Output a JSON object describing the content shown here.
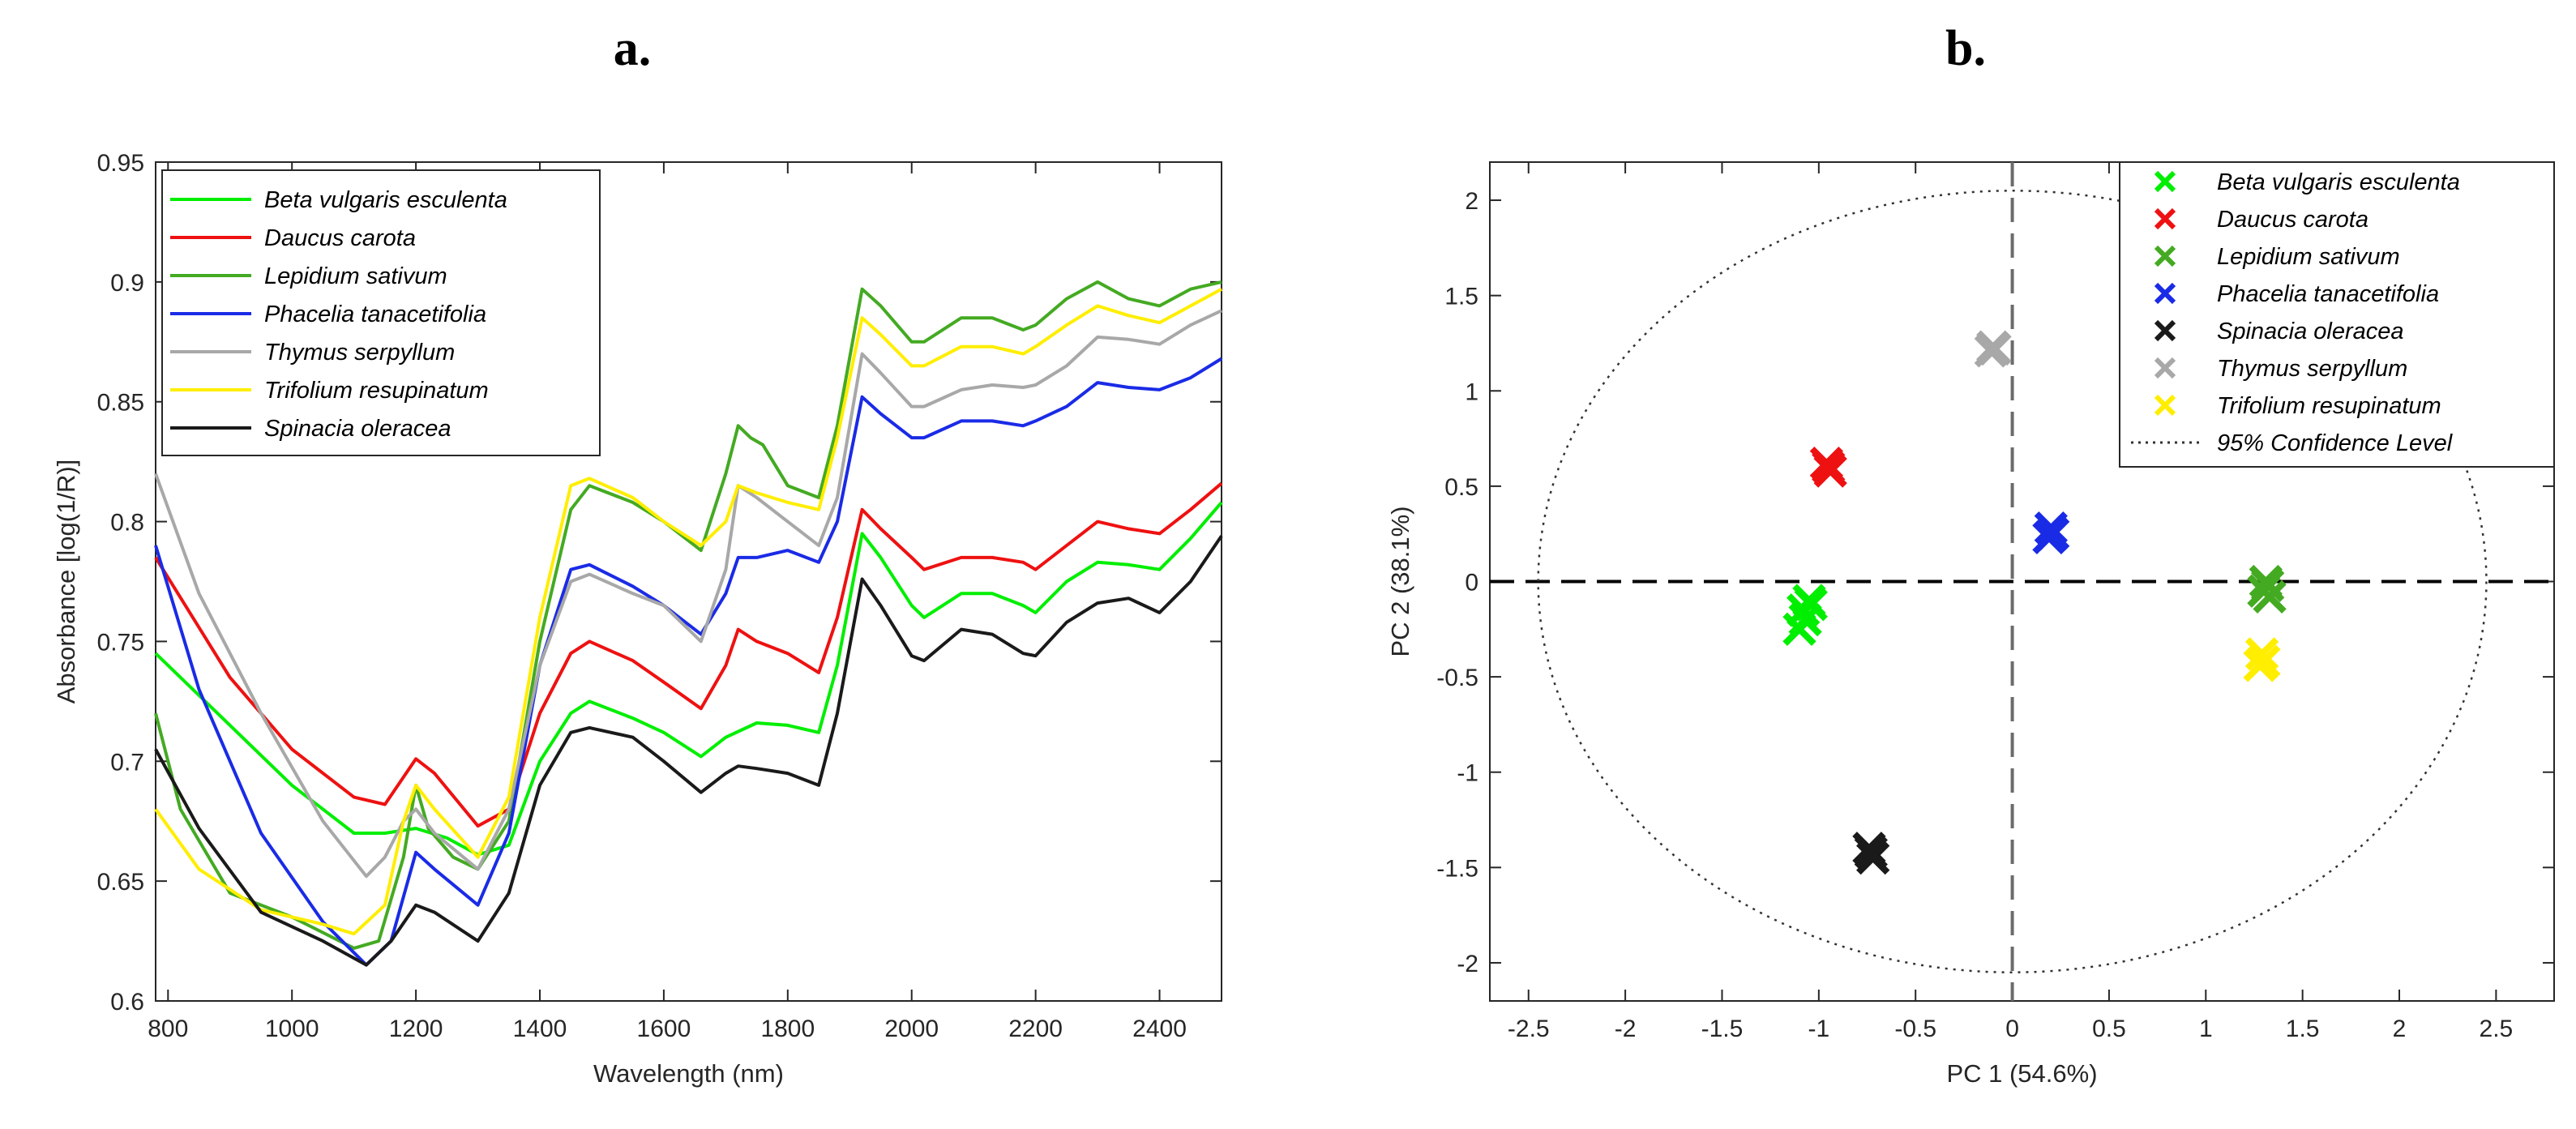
{
  "panels": {
    "a_label": "a.",
    "b_label": "b."
  },
  "chart_data": [
    {
      "type": "line",
      "title": "",
      "xlabel": "Wavelength (nm)",
      "ylabel": "Absorbance [log(1/R)]",
      "xlim": [
        780,
        2500
      ],
      "ylim": [
        0.6,
        0.95
      ],
      "xticks": [
        800,
        1000,
        1200,
        1400,
        1600,
        1800,
        2000,
        2200,
        2400
      ],
      "yticks": [
        0.6,
        0.65,
        0.7,
        0.75,
        0.8,
        0.85,
        0.9,
        0.95
      ],
      "xtick_labels": [
        "800",
        "1000",
        "1200",
        "1400",
        "1600",
        "1800",
        "2000",
        "2200",
        "2400"
      ],
      "ytick_labels": [
        "0.6",
        "0.65",
        "0.7",
        "0.75",
        "0.8",
        "0.85",
        "0.9",
        "0.95"
      ],
      "grid": false,
      "legend_position": "top-left",
      "series": [
        {
          "name": "Beta vulgaris esculenta",
          "color": "#00ee00",
          "x": [
            780,
            900,
            1000,
            1100,
            1150,
            1200,
            1250,
            1300,
            1350,
            1400,
            1450,
            1480,
            1550,
            1600,
            1660,
            1700,
            1750,
            1800,
            1850,
            1880,
            1920,
            1950,
            2000,
            2020,
            2080,
            2130,
            2180,
            2200,
            2250,
            2300,
            2350,
            2400,
            2450,
            2500
          ],
          "y": [
            0.745,
            0.715,
            0.69,
            0.67,
            0.67,
            0.672,
            0.668,
            0.661,
            0.665,
            0.7,
            0.72,
            0.725,
            0.718,
            0.712,
            0.702,
            0.71,
            0.716,
            0.715,
            0.712,
            0.74,
            0.795,
            0.785,
            0.765,
            0.76,
            0.77,
            0.77,
            0.765,
            0.762,
            0.775,
            0.783,
            0.782,
            0.78,
            0.793,
            0.808
          ]
        },
        {
          "name": "Daucus carota",
          "color": "#ee1111",
          "x": [
            780,
            900,
            1000,
            1100,
            1150,
            1200,
            1230,
            1300,
            1350,
            1400,
            1450,
            1480,
            1550,
            1600,
            1660,
            1700,
            1720,
            1750,
            1800,
            1850,
            1880,
            1920,
            1950,
            2000,
            2020,
            2080,
            2130,
            2180,
            2200,
            2250,
            2300,
            2350,
            2400,
            2450,
            2500
          ],
          "y": [
            0.785,
            0.735,
            0.705,
            0.685,
            0.682,
            0.701,
            0.695,
            0.673,
            0.68,
            0.72,
            0.745,
            0.75,
            0.742,
            0.733,
            0.722,
            0.74,
            0.755,
            0.75,
            0.745,
            0.737,
            0.76,
            0.805,
            0.797,
            0.785,
            0.78,
            0.785,
            0.785,
            0.783,
            0.78,
            0.79,
            0.8,
            0.797,
            0.795,
            0.805,
            0.816
          ]
        },
        {
          "name": "Lepidium sativum",
          "color": "#44aa22",
          "x": [
            780,
            820,
            900,
            1000,
            1100,
            1140,
            1180,
            1200,
            1220,
            1260,
            1300,
            1350,
            1400,
            1450,
            1480,
            1550,
            1600,
            1660,
            1700,
            1720,
            1740,
            1760,
            1800,
            1850,
            1880,
            1920,
            1950,
            2000,
            2020,
            2080,
            2130,
            2180,
            2200,
            2250,
            2300,
            2350,
            2400,
            2450,
            2500
          ],
          "y": [
            0.72,
            0.68,
            0.645,
            0.635,
            0.622,
            0.625,
            0.66,
            0.69,
            0.672,
            0.66,
            0.655,
            0.675,
            0.75,
            0.805,
            0.815,
            0.808,
            0.8,
            0.788,
            0.82,
            0.84,
            0.835,
            0.832,
            0.815,
            0.81,
            0.84,
            0.897,
            0.89,
            0.875,
            0.875,
            0.885,
            0.885,
            0.88,
            0.882,
            0.893,
            0.9,
            0.893,
            0.89,
            0.897,
            0.9
          ]
        },
        {
          "name": "Phacelia tanacetifolia",
          "color": "#1a2be6",
          "x": [
            780,
            850,
            950,
            1050,
            1120,
            1160,
            1200,
            1230,
            1300,
            1350,
            1400,
            1450,
            1480,
            1550,
            1600,
            1660,
            1700,
            1720,
            1750,
            1800,
            1850,
            1880,
            1920,
            1950,
            2000,
            2020,
            2080,
            2130,
            2180,
            2200,
            2250,
            2300,
            2350,
            2400,
            2450,
            2500
          ],
          "y": [
            0.79,
            0.73,
            0.67,
            0.633,
            0.615,
            0.625,
            0.662,
            0.655,
            0.64,
            0.67,
            0.74,
            0.78,
            0.782,
            0.773,
            0.765,
            0.753,
            0.77,
            0.785,
            0.785,
            0.788,
            0.783,
            0.8,
            0.852,
            0.845,
            0.835,
            0.835,
            0.842,
            0.842,
            0.84,
            0.842,
            0.848,
            0.858,
            0.856,
            0.855,
            0.86,
            0.868
          ]
        },
        {
          "name": "Thymus serpyllum",
          "color": "#a8a8a8",
          "x": [
            780,
            850,
            950,
            1050,
            1120,
            1150,
            1180,
            1200,
            1230,
            1300,
            1350,
            1400,
            1450,
            1480,
            1550,
            1600,
            1660,
            1700,
            1720,
            1750,
            1800,
            1850,
            1880,
            1920,
            1950,
            2000,
            2020,
            2080,
            2130,
            2180,
            2200,
            2250,
            2300,
            2350,
            2400,
            2450,
            2500
          ],
          "y": [
            0.82,
            0.77,
            0.72,
            0.675,
            0.652,
            0.66,
            0.675,
            0.68,
            0.67,
            0.655,
            0.68,
            0.74,
            0.775,
            0.778,
            0.77,
            0.765,
            0.75,
            0.78,
            0.815,
            0.81,
            0.8,
            0.79,
            0.81,
            0.87,
            0.862,
            0.848,
            0.848,
            0.855,
            0.857,
            0.856,
            0.857,
            0.865,
            0.877,
            0.876,
            0.874,
            0.882,
            0.888
          ]
        },
        {
          "name": "Trifolium resupinatum",
          "color": "#ffee00",
          "x": [
            780,
            850,
            950,
            1050,
            1100,
            1150,
            1180,
            1200,
            1230,
            1300,
            1350,
            1400,
            1450,
            1480,
            1550,
            1600,
            1660,
            1700,
            1720,
            1750,
            1800,
            1850,
            1880,
            1920,
            1950,
            2000,
            2020,
            2080,
            2130,
            2180,
            2200,
            2250,
            2300,
            2350,
            2400,
            2450,
            2500
          ],
          "y": [
            0.68,
            0.655,
            0.638,
            0.632,
            0.628,
            0.64,
            0.675,
            0.69,
            0.68,
            0.66,
            0.685,
            0.76,
            0.815,
            0.818,
            0.81,
            0.8,
            0.79,
            0.8,
            0.815,
            0.812,
            0.808,
            0.805,
            0.835,
            0.885,
            0.878,
            0.865,
            0.865,
            0.873,
            0.873,
            0.87,
            0.873,
            0.882,
            0.89,
            0.886,
            0.883,
            0.89,
            0.897
          ]
        },
        {
          "name": "Spinacia oleracea",
          "color": "#1a1a1a",
          "x": [
            780,
            850,
            950,
            1050,
            1120,
            1160,
            1200,
            1230,
            1300,
            1350,
            1400,
            1450,
            1480,
            1550,
            1600,
            1660,
            1700,
            1720,
            1750,
            1800,
            1850,
            1880,
            1920,
            1950,
            2000,
            2020,
            2080,
            2130,
            2180,
            2200,
            2250,
            2300,
            2350,
            2400,
            2450,
            2500
          ],
          "y": [
            0.705,
            0.672,
            0.637,
            0.625,
            0.615,
            0.625,
            0.64,
            0.637,
            0.625,
            0.645,
            0.69,
            0.712,
            0.714,
            0.71,
            0.7,
            0.687,
            0.695,
            0.698,
            0.697,
            0.695,
            0.69,
            0.72,
            0.776,
            0.765,
            0.744,
            0.742,
            0.755,
            0.753,
            0.745,
            0.744,
            0.758,
            0.766,
            0.768,
            0.762,
            0.775,
            0.794
          ]
        }
      ]
    },
    {
      "type": "scatter",
      "title": "",
      "xlabel": "PC 1 (54.6%)",
      "ylabel": "PC 2 (38.1%)",
      "xlim": [
        -2.7,
        2.8
      ],
      "ylim": [
        -2.2,
        2.2
      ],
      "xticks": [
        -2.5,
        -2,
        -1.5,
        -1,
        -0.5,
        0,
        0.5,
        1,
        1.5,
        2,
        2.5
      ],
      "yticks": [
        -2,
        -1.5,
        -1,
        -0.5,
        0,
        0.5,
        1,
        1.5,
        2
      ],
      "xtick_labels": [
        "-2.5",
        "-2",
        "-1.5",
        "-1",
        "-0.5",
        "0",
        "0.5",
        "1",
        "1.5",
        "2",
        "2.5"
      ],
      "ytick_labels": [
        "-2",
        "-1.5",
        "-1",
        "-0.5",
        "0",
        "0.5",
        "1",
        "1.5",
        "2"
      ],
      "grid": false,
      "legend_position": "top-right",
      "confidence_ellipse": {
        "label": "95% Confidence Level",
        "center": [
          0,
          0
        ],
        "rx": 2.45,
        "ry": 2.05
      },
      "series": [
        {
          "name": "Beta vulgaris esculenta",
          "color": "#00ee00",
          "points": [
            [
              -1.05,
              -0.1
            ],
            [
              -1.08,
              -0.15
            ],
            [
              -1.07,
              -0.2
            ],
            [
              -1.1,
              -0.25
            ],
            [
              -1.04,
              -0.12
            ]
          ]
        },
        {
          "name": "Daucus carota",
          "color": "#ee1111",
          "points": [
            [
              -0.95,
              0.6
            ],
            [
              -0.94,
              0.58
            ],
            [
              -0.96,
              0.62
            ]
          ]
        },
        {
          "name": "Lepidium sativum",
          "color": "#44aa22",
          "points": [
            [
              1.32,
              -0.02
            ],
            [
              1.3,
              -0.05
            ],
            [
              1.33,
              -0.08
            ],
            [
              1.31,
              0.0
            ]
          ]
        },
        {
          "name": "Phacelia tanacetifolia",
          "color": "#1a2be6",
          "points": [
            [
              0.2,
              0.28
            ],
            [
              0.19,
              0.23
            ],
            [
              0.21,
              0.25
            ]
          ]
        },
        {
          "name": "Spinacia oleracea",
          "color": "#1a1a1a",
          "points": [
            [
              -0.73,
              -1.42
            ],
            [
              -0.72,
              -1.45
            ],
            [
              -0.74,
              -1.4
            ]
          ]
        },
        {
          "name": "Thymus serpyllum",
          "color": "#a8a8a8",
          "points": [
            [
              -0.1,
              1.23
            ],
            [
              -0.11,
              1.21
            ],
            [
              -0.09,
              1.22
            ]
          ]
        },
        {
          "name": "Trifolium resupinatum",
          "color": "#ffee00",
          "points": [
            [
              1.29,
              -0.38
            ],
            [
              1.3,
              -0.42
            ],
            [
              1.28,
              -0.44
            ]
          ]
        }
      ]
    }
  ]
}
